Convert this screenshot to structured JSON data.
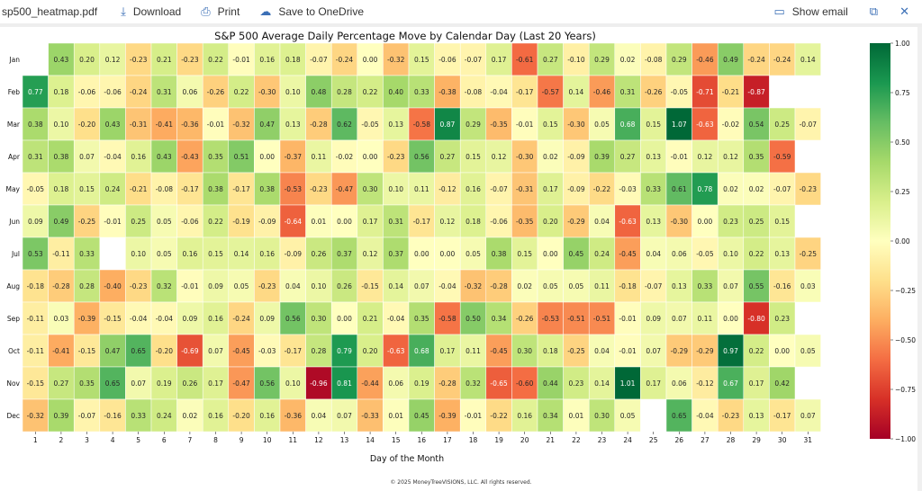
{
  "viewer": {
    "filename": "sp500_heatmap.pdf",
    "download_label": "Download",
    "print_label": "Print",
    "save_label": "Save to OneDrive",
    "show_email_label": "Show email",
    "icons": {
      "download": "download-icon",
      "print": "print-icon",
      "onedrive": "cloud-upload-icon",
      "show_email": "email-icon",
      "popout": "popout-icon",
      "close": "close-icon"
    }
  },
  "footer": "© 2025 MoneyTreeVISIONS, LLC. All rights reserved.",
  "chart_data": {
    "type": "heatmap",
    "title": "S&P 500 Average Daily Percentage Move by Calendar Day (Last 20 Years)",
    "xlabel": "Day of the Month",
    "ylabel": "",
    "x": [
      "1",
      "2",
      "3",
      "4",
      "5",
      "6",
      "7",
      "8",
      "9",
      "10",
      "11",
      "12",
      "13",
      "14",
      "15",
      "16",
      "17",
      "18",
      "19",
      "20",
      "21",
      "22",
      "23",
      "24",
      "25",
      "26",
      "27",
      "28",
      "29",
      "30",
      "31"
    ],
    "y": [
      "Jan",
      "Feb",
      "Mar",
      "Apr",
      "May",
      "Jun",
      "Jul",
      "Aug",
      "Sep",
      "Oct",
      "Nov",
      "Dec"
    ],
    "values": [
      [
        null,
        0.43,
        0.2,
        0.12,
        -0.23,
        0.21,
        -0.23,
        0.22,
        -0.01,
        0.16,
        0.18,
        -0.07,
        -0.24,
        -0.0,
        -0.32,
        0.15,
        -0.06,
        -0.07,
        0.17,
        -0.61,
        0.27,
        -0.1,
        0.29,
        0.02,
        -0.08,
        0.29,
        -0.46,
        0.49,
        -0.24,
        -0.24,
        0.14
      ],
      [
        0.77,
        0.18,
        -0.06,
        -0.06,
        -0.24,
        0.31,
        0.06,
        -0.26,
        0.22,
        -0.3,
        0.1,
        0.48,
        0.28,
        0.22,
        0.4,
        0.33,
        -0.38,
        -0.08,
        -0.04,
        -0.17,
        -0.57,
        0.14,
        -0.46,
        0.31,
        -0.26,
        -0.05,
        -0.71,
        -0.21,
        -0.87,
        null,
        null
      ],
      [
        0.38,
        0.1,
        -0.2,
        0.43,
        -0.31,
        -0.41,
        -0.36,
        -0.01,
        -0.32,
        0.47,
        0.13,
        -0.28,
        0.62,
        -0.05,
        0.13,
        -0.58,
        0.87,
        0.29,
        -0.35,
        -0.01,
        0.15,
        -0.3,
        0.05,
        0.68,
        0.15,
        1.07,
        -0.63,
        -0.02,
        0.54,
        0.25,
        -0.07
      ],
      [
        0.31,
        0.38,
        0.07,
        -0.04,
        0.16,
        0.43,
        -0.43,
        0.35,
        0.51,
        -0.0,
        -0.37,
        0.11,
        -0.02,
        0.0,
        -0.23,
        0.56,
        0.27,
        0.15,
        0.12,
        -0.3,
        0.02,
        -0.09,
        0.39,
        0.27,
        0.13,
        -0.01,
        0.12,
        0.12,
        0.35,
        -0.59,
        null
      ],
      [
        -0.05,
        0.18,
        0.15,
        0.24,
        -0.21,
        -0.08,
        -0.17,
        0.38,
        -0.17,
        0.38,
        -0.53,
        -0.23,
        -0.47,
        0.3,
        0.1,
        0.11,
        -0.12,
        0.16,
        -0.07,
        -0.31,
        0.17,
        -0.09,
        -0.22,
        -0.03,
        0.33,
        0.61,
        0.78,
        0.02,
        0.02,
        -0.07,
        -0.23
      ],
      [
        0.09,
        0.49,
        -0.25,
        -0.01,
        0.25,
        0.05,
        -0.06,
        0.22,
        -0.19,
        -0.09,
        -0.64,
        0.01,
        -0.0,
        0.17,
        0.31,
        -0.17,
        0.12,
        0.18,
        -0.06,
        -0.35,
        0.2,
        -0.29,
        0.04,
        -0.63,
        0.13,
        -0.3,
        0.0,
        0.23,
        0.25,
        0.15,
        null
      ],
      [
        0.53,
        -0.11,
        0.33,
        null,
        0.1,
        0.05,
        0.16,
        0.15,
        0.14,
        0.16,
        -0.09,
        0.26,
        0.37,
        0.12,
        0.37,
        0.0,
        -0.0,
        0.05,
        0.38,
        0.15,
        -0.0,
        0.45,
        0.24,
        -0.45,
        0.04,
        0.06,
        -0.05,
        0.1,
        0.22,
        0.13,
        -0.25
      ],
      [
        -0.18,
        -0.28,
        0.28,
        -0.4,
        -0.23,
        0.32,
        -0.01,
        0.09,
        0.05,
        -0.23,
        0.04,
        0.1,
        0.26,
        -0.15,
        0.14,
        0.07,
        -0.04,
        -0.32,
        -0.28,
        0.02,
        0.05,
        0.05,
        0.11,
        -0.18,
        -0.07,
        0.13,
        0.33,
        0.07,
        0.55,
        -0.16,
        0.03
      ],
      [
        -0.11,
        0.03,
        -0.39,
        -0.15,
        -0.04,
        -0.04,
        0.09,
        0.16,
        -0.24,
        0.09,
        0.56,
        0.3,
        0.0,
        0.21,
        -0.04,
        0.35,
        -0.58,
        0.5,
        0.34,
        -0.26,
        -0.53,
        -0.51,
        -0.51,
        -0.01,
        0.09,
        0.07,
        0.11,
        -0.0,
        -0.8,
        0.23,
        null
      ],
      [
        -0.11,
        -0.41,
        -0.15,
        0.47,
        0.65,
        -0.2,
        -0.69,
        0.07,
        -0.45,
        -0.03,
        -0.17,
        0.28,
        0.79,
        0.2,
        -0.63,
        0.68,
        0.17,
        0.11,
        -0.45,
        0.3,
        0.18,
        -0.25,
        0.04,
        -0.01,
        0.07,
        -0.29,
        -0.29,
        0.97,
        0.22,
        0.0,
        0.05
      ],
      [
        -0.15,
        0.27,
        0.35,
        0.65,
        0.07,
        0.19,
        0.26,
        0.17,
        -0.47,
        0.56,
        0.1,
        -0.96,
        0.81,
        -0.44,
        0.06,
        0.19,
        -0.28,
        0.32,
        -0.65,
        -0.6,
        0.44,
        0.23,
        0.14,
        1.01,
        0.17,
        0.06,
        -0.12,
        0.67,
        0.17,
        0.42,
        null
      ],
      [
        -0.32,
        0.39,
        -0.07,
        -0.16,
        0.33,
        0.24,
        0.02,
        0.16,
        -0.2,
        0.16,
        -0.36,
        0.04,
        0.07,
        -0.33,
        0.01,
        0.45,
        -0.39,
        -0.01,
        -0.22,
        0.16,
        0.34,
        0.01,
        0.3,
        0.05,
        null,
        0.65,
        -0.04,
        -0.23,
        0.13,
        -0.17,
        0.07
      ]
    ],
    "colormap": "RdYlGn",
    "vmin": -1.0,
    "vmax": 1.0,
    "colorbar_ticks": [
      "1.00",
      "0.75",
      "0.50",
      "0.25",
      "0.00",
      "−0.25",
      "−0.50",
      "−0.75",
      "−1.00"
    ],
    "colorbar_tick_values": [
      1.0,
      0.75,
      0.5,
      0.25,
      0.0,
      -0.25,
      -0.5,
      -0.75,
      -1.0
    ],
    "legend_placement": "right"
  }
}
